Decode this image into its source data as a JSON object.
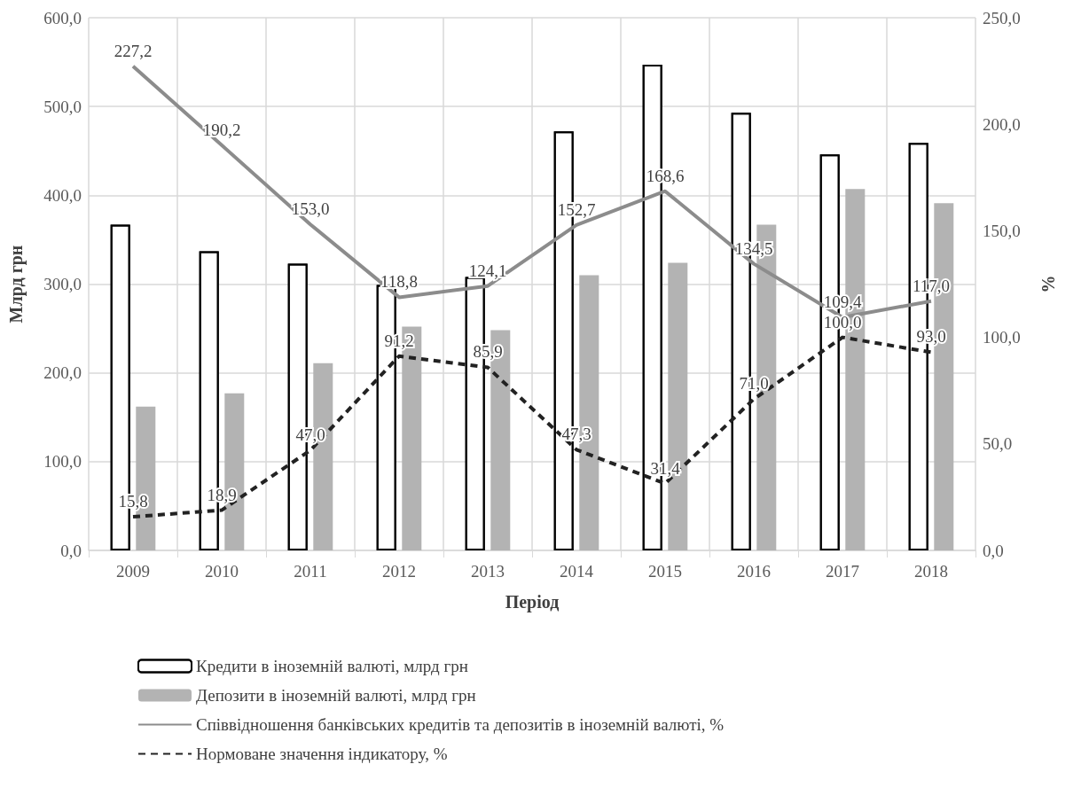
{
  "chart_data": {
    "type": "bar",
    "categories": [
      "2009",
      "2010",
      "2011",
      "2012",
      "2013",
      "2014",
      "2015",
      "2016",
      "2017",
      "2018"
    ],
    "xlabel": "Період",
    "ylabel": "Млрд грн",
    "y2label": "%",
    "series": [
      {
        "name": "Кредити в іноземній валюті, млрд грн",
        "color": "#ffffff",
        "values": [
          367,
          337,
          323,
          299,
          308,
          472,
          547,
          493,
          446,
          459
        ]
      },
      {
        "name": "Депозити в іноземній валюті, млрд грн",
        "color": "#b3b3b3",
        "values": [
          162,
          177,
          211,
          252,
          248,
          310,
          324,
          367,
          407,
          391
        ]
      },
      {
        "name": "Співвідношення банківських кредитів та депозитів в іноземній валюті, %",
        "type": "line",
        "axis": "y2",
        "color": "#8c8c8c",
        "line_style": "solid",
        "values": [
          227.2,
          190.2,
          153.0,
          118.8,
          124.1,
          152.7,
          168.6,
          134.5,
          109.4,
          117.0
        ],
        "value_labels": [
          "227,2",
          "190,2",
          "153,0",
          "118,8",
          "124,1",
          "152,7",
          "168,6",
          "134,5",
          "109,4",
          "117,0"
        ]
      },
      {
        "name": "Нормоване значення індикатору, %",
        "type": "line",
        "axis": "y2",
        "color": "#222222",
        "line_style": "dashed",
        "values": [
          15.8,
          18.9,
          47.0,
          91.2,
          85.9,
          47.3,
          31.4,
          71.0,
          100.0,
          93.0
        ],
        "value_labels": [
          "15,8",
          "18,9",
          "47,0",
          "91,2",
          "85,9",
          "47,3",
          "31,4",
          "71,0",
          "100,0",
          "93,0"
        ]
      }
    ],
    "ylim": [
      0,
      600
    ],
    "yticks": [
      {
        "value": 0,
        "label": "0,0"
      },
      {
        "value": 100,
        "label": "100,0"
      },
      {
        "value": 200,
        "label": "200,0"
      },
      {
        "value": 300,
        "label": "300,0"
      },
      {
        "value": 400,
        "label": "400,0"
      },
      {
        "value": 500,
        "label": "500,0"
      },
      {
        "value": 600,
        "label": "600,0"
      }
    ],
    "y2lim": [
      0,
      250
    ],
    "y2ticks": [
      {
        "value": 0,
        "label": "0,0"
      },
      {
        "value": 50,
        "label": "50,0"
      },
      {
        "value": 100,
        "label": "100,0"
      },
      {
        "value": 150,
        "label": "150,0"
      },
      {
        "value": 200,
        "label": "200,0"
      },
      {
        "value": 250,
        "label": "250,0"
      }
    ],
    "grid": true,
    "legend": "bottom",
    "marker": "none"
  }
}
